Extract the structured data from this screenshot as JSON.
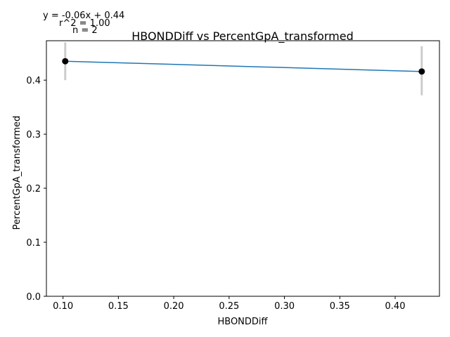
{
  "chart_data": {
    "type": "scatter",
    "title": "HBONDDiff vs PercentGpA_transformed",
    "xlabel": "HBONDDiff",
    "ylabel": "PercentGpA_transformed",
    "xlim": [
      0.085,
      0.44
    ],
    "ylim": [
      0.0,
      0.473
    ],
    "xticks": [
      0.1,
      0.15,
      0.2,
      0.25,
      0.3,
      0.35,
      0.4
    ],
    "xtick_labels": [
      "0.10",
      "0.15",
      "0.20",
      "0.25",
      "0.30",
      "0.35",
      "0.40"
    ],
    "yticks": [
      0.0,
      0.1,
      0.2,
      0.3,
      0.4
    ],
    "ytick_labels": [
      "0.0",
      "0.1",
      "0.2",
      "0.3",
      "0.4"
    ],
    "points": [
      {
        "x": 0.102,
        "y": 0.435,
        "err_low": 0.4,
        "err_high": 0.47
      },
      {
        "x": 0.424,
        "y": 0.416,
        "err_low": 0.372,
        "err_high": 0.463
      }
    ],
    "fit_line": {
      "x": [
        0.102,
        0.424
      ],
      "y": [
        0.435,
        0.416
      ]
    },
    "annotations": {
      "equation": "y = -0.06x + 0.44",
      "r2": "r^2 = 1.00",
      "n": "n = 2"
    },
    "grid": false,
    "colors": {
      "line": "#1f77b4",
      "point": "#000000",
      "errorbar": "#cccccc"
    }
  }
}
